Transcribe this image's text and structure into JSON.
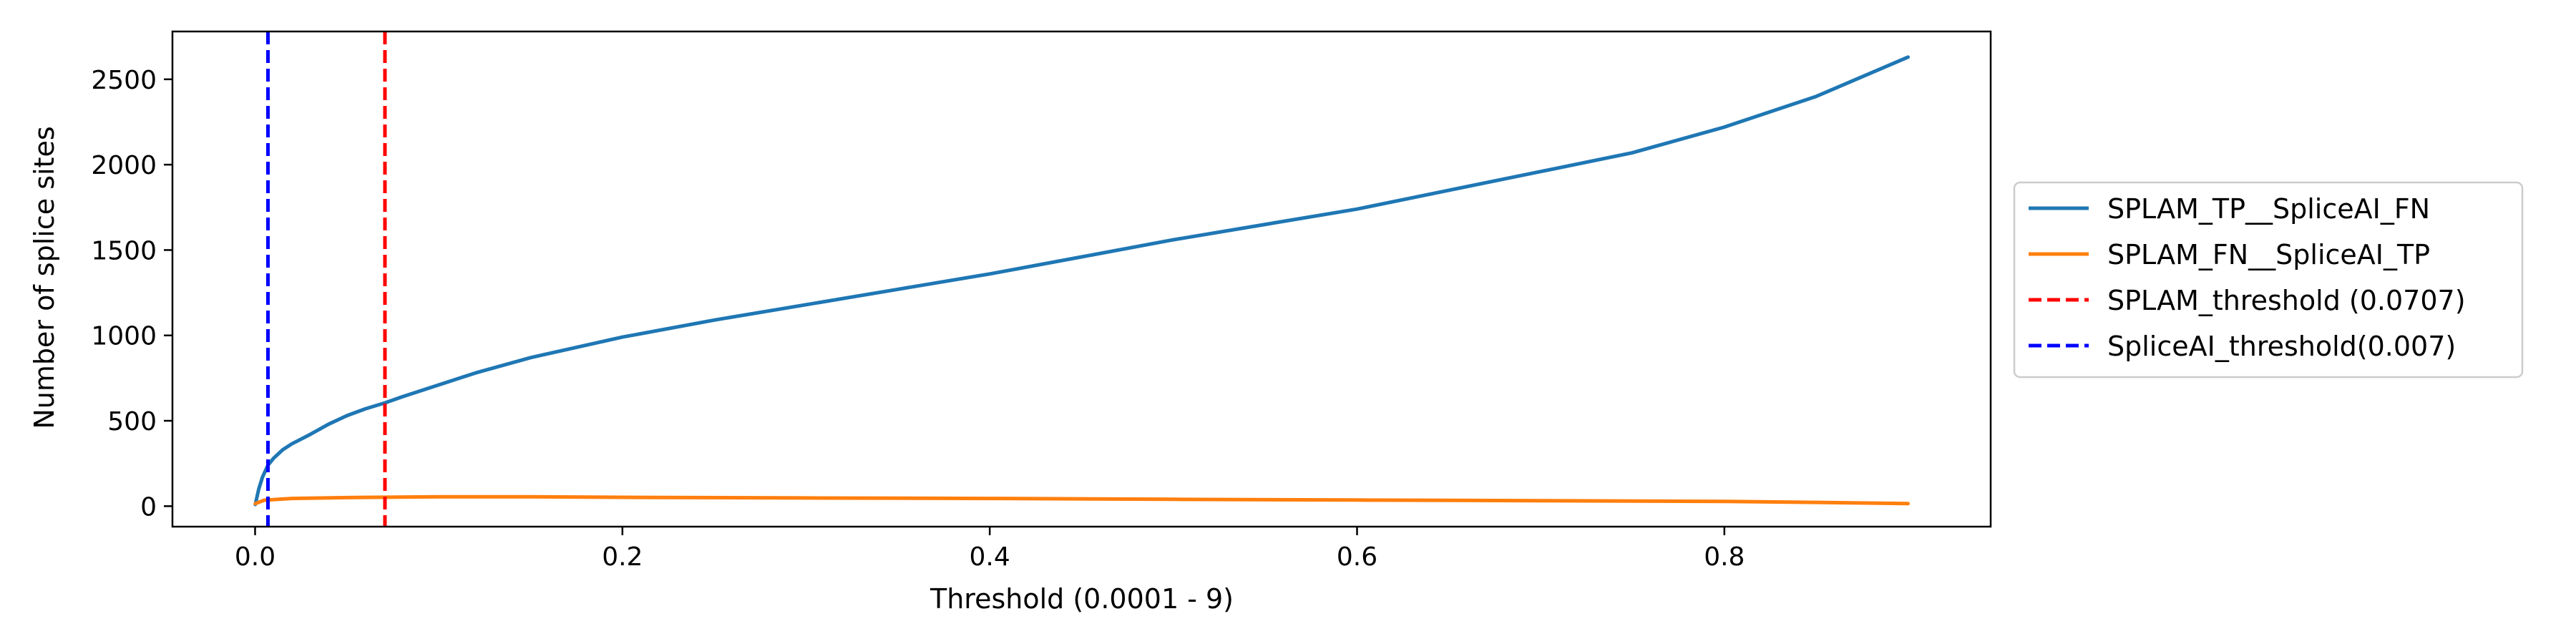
{
  "chart_data": {
    "type": "line",
    "xlabel": "Threshold (0.0001 - 9)",
    "ylabel": "Number of splice sites",
    "xlim": [
      -0.045,
      0.945
    ],
    "ylim": [
      -120,
      2780
    ],
    "xticks": [
      0.0,
      0.2,
      0.4,
      0.6,
      0.8
    ],
    "xtick_labels": [
      "0.0",
      "0.2",
      "0.4",
      "0.6",
      "0.8"
    ],
    "yticks": [
      0,
      500,
      1000,
      1500,
      2000,
      2500
    ],
    "ytick_labels": [
      "0",
      "500",
      "1000",
      "1500",
      "2000",
      "2500"
    ],
    "grid": false,
    "legend_position": "outside-right",
    "series": [
      {
        "name": "SPLAM_TP__SpliceAI_FN",
        "color": "#1f77b4",
        "style": "solid",
        "points": [
          [
            0.0001,
            10
          ],
          [
            0.002,
            100
          ],
          [
            0.004,
            170
          ],
          [
            0.007,
            240
          ],
          [
            0.01,
            280
          ],
          [
            0.015,
            330
          ],
          [
            0.02,
            365
          ],
          [
            0.03,
            420
          ],
          [
            0.04,
            480
          ],
          [
            0.05,
            530
          ],
          [
            0.06,
            570
          ],
          [
            0.0707,
            605
          ],
          [
            0.08,
            640
          ],
          [
            0.1,
            710
          ],
          [
            0.12,
            780
          ],
          [
            0.15,
            870
          ],
          [
            0.2,
            990
          ],
          [
            0.25,
            1090
          ],
          [
            0.3,
            1180
          ],
          [
            0.35,
            1270
          ],
          [
            0.4,
            1360
          ],
          [
            0.45,
            1460
          ],
          [
            0.5,
            1560
          ],
          [
            0.55,
            1650
          ],
          [
            0.6,
            1740
          ],
          [
            0.65,
            1850
          ],
          [
            0.7,
            1960
          ],
          [
            0.75,
            2070
          ],
          [
            0.8,
            2220
          ],
          [
            0.85,
            2400
          ],
          [
            0.9,
            2630
          ]
        ]
      },
      {
        "name": "SPLAM_FN__SpliceAI_TP",
        "color": "#ff7f0e",
        "style": "solid",
        "points": [
          [
            0.0001,
            15
          ],
          [
            0.005,
            35
          ],
          [
            0.02,
            45
          ],
          [
            0.05,
            50
          ],
          [
            0.1,
            55
          ],
          [
            0.15,
            55
          ],
          [
            0.2,
            52
          ],
          [
            0.3,
            48
          ],
          [
            0.4,
            45
          ],
          [
            0.5,
            40
          ],
          [
            0.6,
            36
          ],
          [
            0.7,
            32
          ],
          [
            0.8,
            28
          ],
          [
            0.85,
            22
          ],
          [
            0.9,
            15
          ]
        ]
      }
    ],
    "vlines": [
      {
        "name": "SPLAM_threshold (0.0707)",
        "x": 0.0707,
        "color": "#ff0000",
        "style": "dashed"
      },
      {
        "name": "SpliceAI_threshold(0.007)",
        "x": 0.007,
        "color": "#0000ff",
        "style": "dashed"
      }
    ],
    "legend": [
      {
        "label": "SPLAM_TP__SpliceAI_FN",
        "color": "#1f77b4",
        "style": "solid"
      },
      {
        "label": "SPLAM_FN__SpliceAI_TP",
        "color": "#ff7f0e",
        "style": "solid"
      },
      {
        "label": "SPLAM_threshold (0.0707)",
        "color": "#ff0000",
        "style": "dashed"
      },
      {
        "label": "SpliceAI_threshold(0.007)",
        "color": "#0000ff",
        "style": "dashed"
      }
    ]
  }
}
